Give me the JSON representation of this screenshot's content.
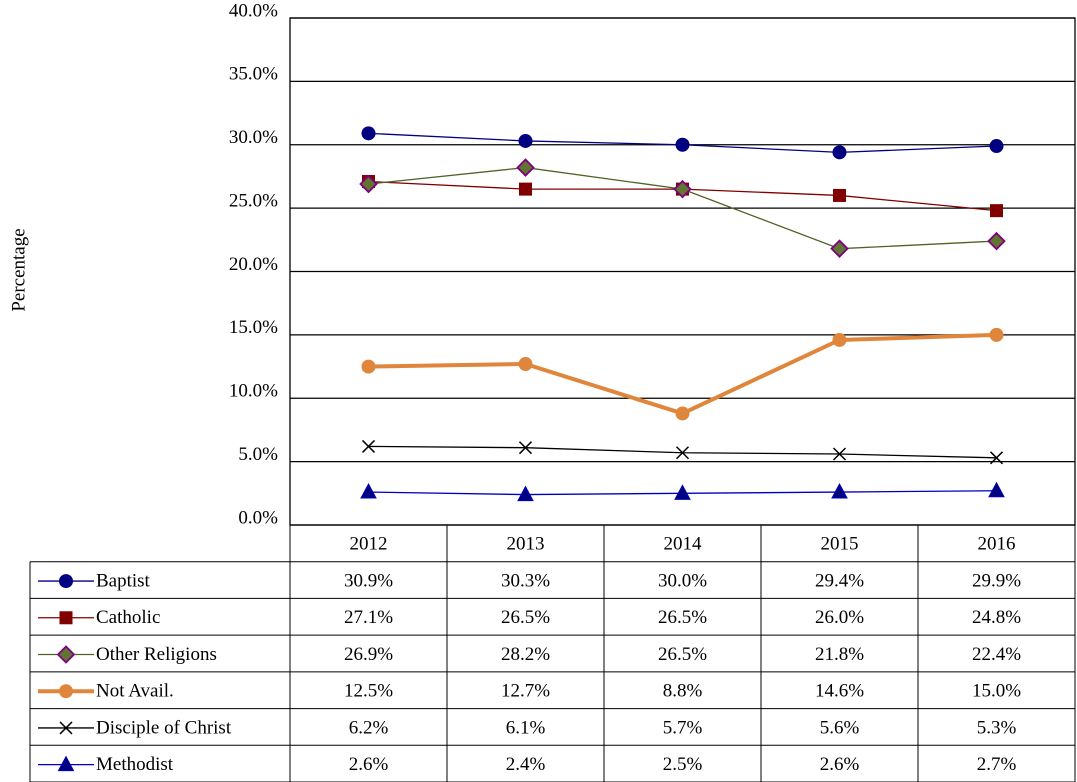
{
  "chart_data": {
    "type": "line",
    "y_label": "Percentage",
    "categories": [
      "2012",
      "2013",
      "2014",
      "2015",
      "2016"
    ],
    "ylim": [
      0,
      40
    ],
    "yticks": [
      {
        "value": 0,
        "label": "0.0%"
      },
      {
        "value": 5,
        "label": "5.0%"
      },
      {
        "value": 10,
        "label": "10.0%"
      },
      {
        "value": 15,
        "label": "15.0%"
      },
      {
        "value": 20,
        "label": "20.0%"
      },
      {
        "value": 25,
        "label": "25.0%"
      },
      {
        "value": 30,
        "label": "30.0%"
      },
      {
        "value": 35,
        "label": "35.0%"
      },
      {
        "value": 40,
        "label": "40.0%"
      }
    ],
    "grid": true,
    "series": [
      {
        "name": "Baptist",
        "color": "#000080",
        "marker": "circle",
        "values": [
          30.9,
          30.3,
          30.0,
          29.4,
          29.9
        ],
        "value_labels": [
          "30.9%",
          "30.3%",
          "30.0%",
          "29.4%",
          "29.9%"
        ]
      },
      {
        "name": "Catholic",
        "color": "#800000",
        "marker": "square",
        "values": [
          27.1,
          26.5,
          26.5,
          26.0,
          24.8
        ],
        "value_labels": [
          "27.1%",
          "26.5%",
          "26.5%",
          "26.0%",
          "24.8%"
        ]
      },
      {
        "name": "Other Religions",
        "color": "#4f6228",
        "marker": "diamond",
        "values": [
          26.9,
          28.2,
          26.5,
          21.8,
          22.4
        ],
        "value_labels": [
          "26.9%",
          "28.2%",
          "26.5%",
          "21.8%",
          "22.4%"
        ]
      },
      {
        "name": "Not Avail.",
        "color": "#e0863c",
        "marker": "circle",
        "width": 4,
        "values": [
          12.5,
          12.7,
          8.8,
          14.6,
          15.0
        ],
        "value_labels": [
          "12.5%",
          "12.7%",
          "8.8%",
          "14.6%",
          "15.0%"
        ]
      },
      {
        "name": "Disciple of Christ",
        "color": "#000000",
        "marker": "x",
        "values": [
          6.2,
          6.1,
          5.7,
          5.6,
          5.3
        ],
        "value_labels": [
          "6.2%",
          "6.1%",
          "5.7%",
          "5.6%",
          "5.3%"
        ]
      },
      {
        "name": "Methodist",
        "color": "#0000c0",
        "marker": "triangle",
        "values": [
          2.6,
          2.4,
          2.5,
          2.6,
          2.7
        ],
        "value_labels": [
          "2.6%",
          "2.4%",
          "2.5%",
          "2.6%",
          "2.7%"
        ]
      }
    ]
  }
}
